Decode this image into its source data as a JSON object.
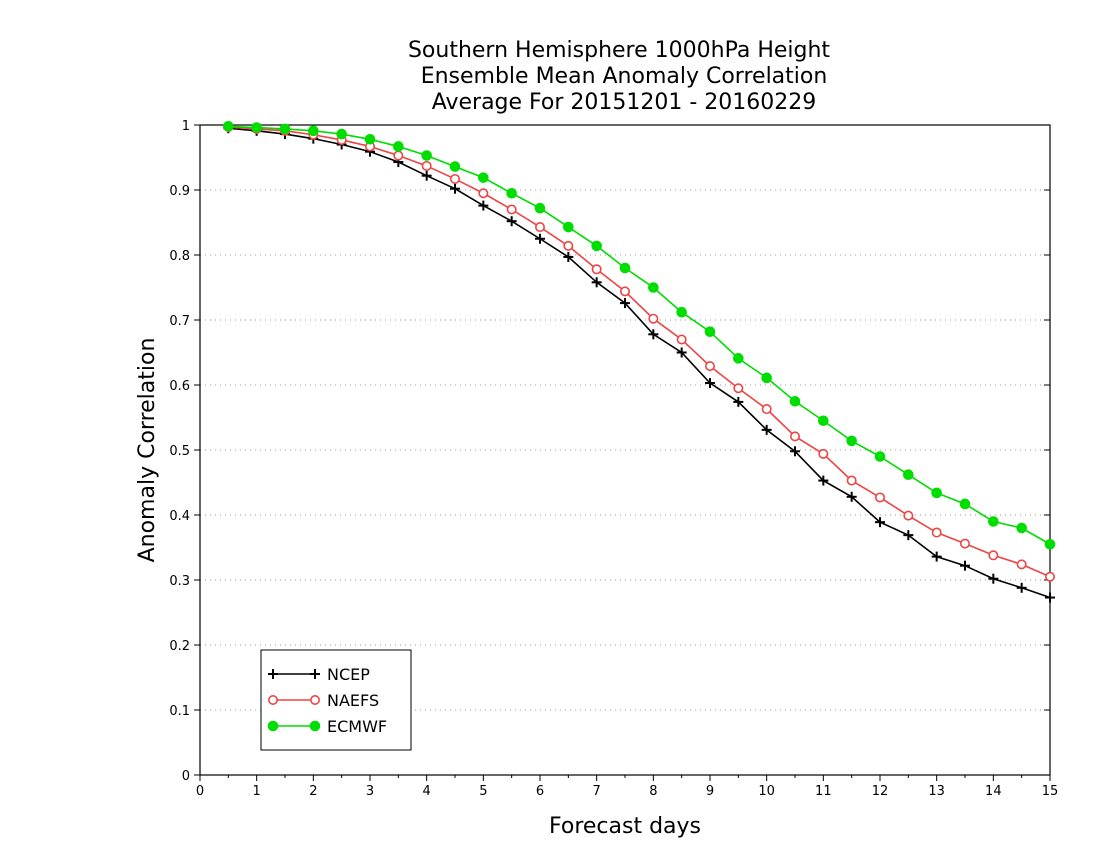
{
  "chart_data": {
    "type": "line",
    "title": [
      "Southern Hemisphere 1000hPa Height",
      "Ensemble Mean Anomaly Correlation",
      "Average For 20151201 - 20160229"
    ],
    "xlabel": "Forecast days",
    "ylabel": "Anomaly Correlation",
    "xlim": [
      0,
      15
    ],
    "ylim": [
      0,
      1
    ],
    "x_ticks": [
      0,
      1,
      2,
      3,
      4,
      5,
      6,
      7,
      8,
      9,
      10,
      11,
      12,
      13,
      14,
      15
    ],
    "y_ticks": [
      0,
      0.1,
      0.2,
      0.3,
      0.4,
      0.5,
      0.6,
      0.7,
      0.8,
      0.9,
      1
    ],
    "y_tick_labels": [
      "0",
      "0.1",
      "0.2",
      "0.3",
      "0.4",
      "0.5",
      "0.6",
      "0.7",
      "0.8",
      "0.9",
      "1"
    ],
    "x_tick_labels": [
      "0",
      "1",
      "2",
      "3",
      "4",
      "5",
      "6",
      "7",
      "8",
      "9",
      "10",
      "11",
      "12",
      "13",
      "14",
      "15"
    ],
    "grid": {
      "y": true,
      "style": "dotted"
    },
    "legend_position": "bottom-left",
    "x": [
      0.5,
      1.0,
      1.5,
      2.0,
      2.5,
      3.0,
      3.5,
      4.0,
      4.5,
      5.0,
      5.5,
      6.0,
      6.5,
      7.0,
      7.5,
      8.0,
      8.5,
      9.0,
      9.5,
      10.0,
      10.5,
      11.0,
      11.5,
      12.0,
      12.5,
      13.0,
      13.5,
      14.0,
      14.5,
      15.0
    ],
    "series": [
      {
        "name": "NCEP",
        "color": "#000000",
        "marker": "plus",
        "values": [
          0.995,
          0.991,
          0.986,
          0.979,
          0.97,
          0.959,
          0.943,
          0.922,
          0.902,
          0.876,
          0.852,
          0.825,
          0.797,
          0.758,
          0.726,
          0.678,
          0.65,
          0.603,
          0.574,
          0.531,
          0.498,
          0.453,
          0.428,
          0.389,
          0.369,
          0.336,
          0.322,
          0.302,
          0.288,
          0.273
        ]
      },
      {
        "name": "NAEFS",
        "color": "#ee4444",
        "marker": "open-circle",
        "values": [
          0.997,
          0.994,
          0.991,
          0.985,
          0.977,
          0.967,
          0.953,
          0.937,
          0.917,
          0.895,
          0.87,
          0.843,
          0.814,
          0.778,
          0.744,
          0.702,
          0.67,
          0.629,
          0.595,
          0.563,
          0.521,
          0.494,
          0.453,
          0.427,
          0.399,
          0.373,
          0.356,
          0.338,
          0.324,
          0.305
        ]
      },
      {
        "name": "ECMWF",
        "color": "#00dd00",
        "marker": "filled-circle",
        "values": [
          0.998,
          0.996,
          0.994,
          0.991,
          0.986,
          0.978,
          0.967,
          0.953,
          0.936,
          0.919,
          0.895,
          0.872,
          0.843,
          0.814,
          0.78,
          0.75,
          0.712,
          0.682,
          0.641,
          0.611,
          0.575,
          0.545,
          0.514,
          0.49,
          0.462,
          0.434,
          0.417,
          0.39,
          0.38,
          0.355
        ]
      }
    ]
  }
}
